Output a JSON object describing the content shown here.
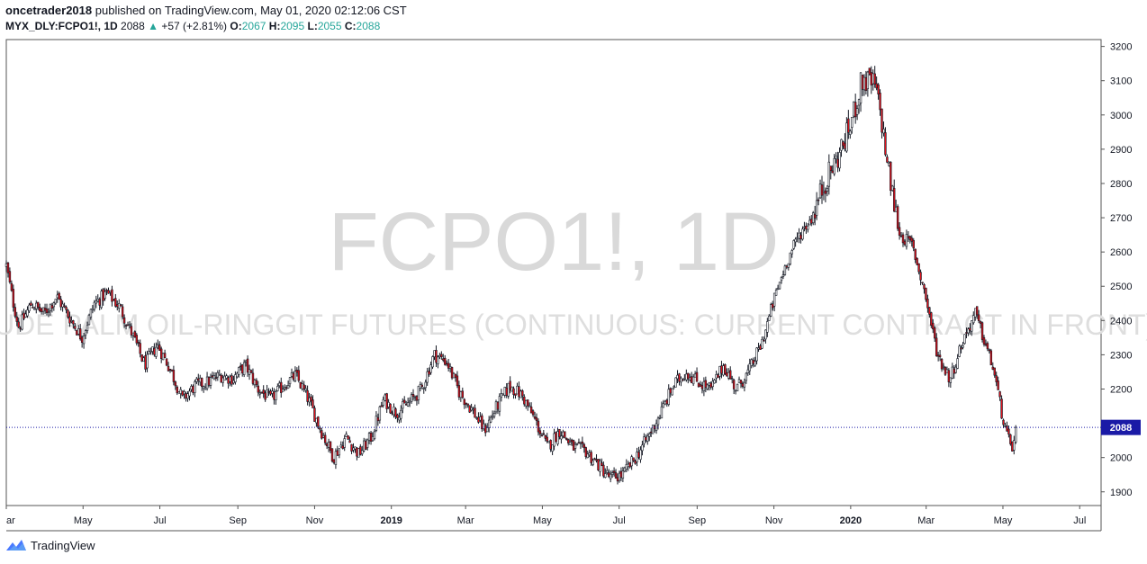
{
  "header": {
    "publisher": "oncetrader2018",
    "published_text": "published on TradingView.com, May 01, 2020 02:12:06 CST",
    "symbol": "MYX_DLY:FCPO1!, 1D",
    "last": "2088",
    "change_arrow": "▲",
    "change": "+57 (+2.81%)",
    "open_label": "O:",
    "open": "2067",
    "high_label": "H:",
    "high": "2095",
    "low_label": "L:",
    "low": "2055",
    "close_label": "C:",
    "close": "2088"
  },
  "watermark": {
    "symbol": "FCPO1!, 1D",
    "description": "CRUDE PALM OIL-RINGGIT FUTURES (CONTINUOUS: CURRENT CONTRACT IN FRONT)"
  },
  "footer": {
    "brand": "TradingView"
  },
  "colors": {
    "up": "#131722",
    "down": "#e0111b",
    "price_line": "#1a1aa6",
    "price_label_bg": "#1a1aa6",
    "axis": "#555555"
  },
  "chart_data": {
    "type": "candlestick",
    "ylim": [
      1860,
      3220
    ],
    "y_ticks": [
      1900,
      2000,
      2100,
      2200,
      2300,
      2400,
      2500,
      2600,
      2700,
      2800,
      2900,
      3000,
      3100,
      3200
    ],
    "x_ticks": [
      {
        "label": "ar",
        "day": 0
      },
      {
        "label": "May",
        "day": 61
      },
      {
        "label": "Jul",
        "day": 122
      },
      {
        "label": "Sep",
        "day": 184
      },
      {
        "label": "Nov",
        "day": 245
      },
      {
        "label": "2019",
        "day": 306
      },
      {
        "label": "Mar",
        "day": 365
      },
      {
        "label": "May",
        "day": 426
      },
      {
        "label": "Jul",
        "day": 487
      },
      {
        "label": "Sep",
        "day": 549
      },
      {
        "label": "Nov",
        "day": 610
      },
      {
        "label": "2020",
        "day": 671
      },
      {
        "label": "Mar",
        "day": 731
      },
      {
        "label": "May",
        "day": 792
      },
      {
        "label": "Jul",
        "day": 853
      }
    ],
    "x_range_days": [
      0,
      870
    ],
    "last_price": 2088,
    "path": [
      [
        0,
        2560
      ],
      [
        5,
        2460
      ],
      [
        10,
        2380
      ],
      [
        20,
        2450
      ],
      [
        30,
        2420
      ],
      [
        40,
        2470
      ],
      [
        50,
        2410
      ],
      [
        60,
        2350
      ],
      [
        70,
        2450
      ],
      [
        80,
        2480
      ],
      [
        90,
        2440
      ],
      [
        100,
        2360
      ],
      [
        110,
        2270
      ],
      [
        120,
        2330
      ],
      [
        130,
        2260
      ],
      [
        140,
        2170
      ],
      [
        150,
        2210
      ],
      [
        160,
        2220
      ],
      [
        170,
        2240
      ],
      [
        180,
        2230
      ],
      [
        190,
        2270
      ],
      [
        200,
        2200
      ],
      [
        210,
        2170
      ],
      [
        220,
        2210
      ],
      [
        230,
        2240
      ],
      [
        240,
        2170
      ],
      [
        250,
        2080
      ],
      [
        260,
        2000
      ],
      [
        270,
        2060
      ],
      [
        280,
        2010
      ],
      [
        290,
        2060
      ],
      [
        300,
        2170
      ],
      [
        310,
        2130
      ],
      [
        320,
        2160
      ],
      [
        330,
        2200
      ],
      [
        340,
        2300
      ],
      [
        350,
        2280
      ],
      [
        360,
        2190
      ],
      [
        370,
        2140
      ],
      [
        380,
        2080
      ],
      [
        390,
        2150
      ],
      [
        400,
        2210
      ],
      [
        410,
        2180
      ],
      [
        420,
        2110
      ],
      [
        430,
        2030
      ],
      [
        440,
        2080
      ],
      [
        450,
        2030
      ],
      [
        460,
        2020
      ],
      [
        470,
        1980
      ],
      [
        480,
        1940
      ],
      [
        490,
        1950
      ],
      [
        500,
        2000
      ],
      [
        510,
        2060
      ],
      [
        520,
        2130
      ],
      [
        530,
        2210
      ],
      [
        540,
        2250
      ],
      [
        550,
        2220
      ],
      [
        560,
        2200
      ],
      [
        570,
        2270
      ],
      [
        580,
        2200
      ],
      [
        590,
        2250
      ],
      [
        600,
        2330
      ],
      [
        610,
        2460
      ],
      [
        620,
        2570
      ],
      [
        630,
        2650
      ],
      [
        640,
        2700
      ],
      [
        650,
        2800
      ],
      [
        660,
        2870
      ],
      [
        670,
        2960
      ],
      [
        680,
        3100
      ],
      [
        690,
        3090
      ],
      [
        695,
        3000
      ],
      [
        700,
        2860
      ],
      [
        705,
        2750
      ],
      [
        710,
        2650
      ],
      [
        720,
        2620
      ],
      [
        730,
        2480
      ],
      [
        740,
        2300
      ],
      [
        750,
        2230
      ],
      [
        760,
        2340
      ],
      [
        770,
        2420
      ],
      [
        780,
        2310
      ],
      [
        785,
        2250
      ],
      [
        790,
        2150
      ],
      [
        795,
        2060
      ],
      [
        800,
        2030
      ],
      [
        803,
        2088
      ]
    ]
  }
}
